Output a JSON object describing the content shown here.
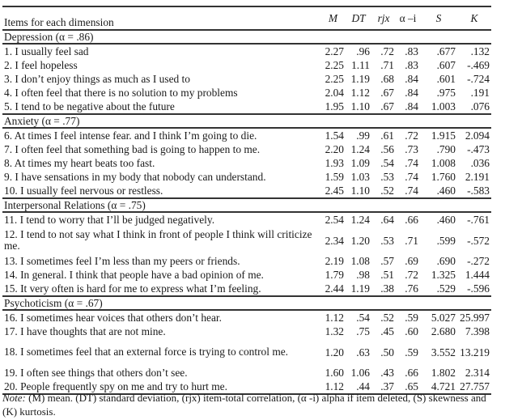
{
  "table": {
    "item_header": "Items for each dimension",
    "columns": [
      "M",
      "DT",
      "rjx",
      "α –i",
      "S",
      "K"
    ],
    "sections": [
      {
        "title": "Depression (α = .86)",
        "items": [
          {
            "text": "1. I usually feel sad",
            "values": [
              "2.27",
              ".96",
              ".72",
              ".83",
              ".677",
              ".132"
            ]
          },
          {
            "text": "2. I feel hopeless",
            "values": [
              "2.25",
              "1.11",
              ".71",
              ".83",
              ".607",
              "-.469"
            ]
          },
          {
            "text": "3. I don’t enjoy things as much as I used to",
            "values": [
              "2.25",
              "1.19",
              ".68",
              ".84",
              ".601",
              "-.724"
            ]
          },
          {
            "text": "4. I often feel that there is no solution to my problems",
            "values": [
              "2.04",
              "1.12",
              ".67",
              ".84",
              ".975",
              ".191"
            ]
          },
          {
            "text": "5. I tend to be negative about the future",
            "values": [
              "1.95",
              "1.10",
              ".67",
              ".84",
              "1.003",
              ".076"
            ]
          }
        ]
      },
      {
        "title": "Anxiety (α = .77)",
        "items": [
          {
            "text": "6. At times I feel intense fear. and I think I’m going to die.",
            "values": [
              "1.54",
              ".99",
              ".61",
              ".72",
              "1.915",
              "2.094"
            ]
          },
          {
            "text": "7. I often feel that something bad is going to happen to me.",
            "values": [
              "2.20",
              "1.24",
              ".56",
              ".73",
              ".790",
              "-.473"
            ]
          },
          {
            "text": "8. At times my heart beats too fast.",
            "values": [
              "1.93",
              "1.09",
              ".54",
              ".74",
              "1.008",
              ".036"
            ]
          },
          {
            "text": "9. I have sensations in my body that nobody can understand.",
            "values": [
              "1.59",
              "1.03",
              ".53",
              ".74",
              "1.760",
              "2.191"
            ]
          },
          {
            "text": "10. I usually feel nervous or restless.",
            "values": [
              "2.45",
              "1.10",
              ".52",
              ".74",
              ".460",
              "-.583"
            ]
          }
        ]
      },
      {
        "title": "Interpersonal Relations (α = .75)",
        "items": [
          {
            "text": "11. I tend to worry that I’ll be judged negatively.",
            "values": [
              "2.54",
              "1.24",
              ".64",
              ".66",
              ".460",
              "-.761"
            ]
          },
          {
            "text": "12. I tend to not say what I think in front of people I think will criticize me.",
            "values": [
              "2.34",
              "1.20",
              ".53",
              ".71",
              ".599",
              "-.572"
            ]
          },
          {
            "text": "13. I sometimes feel I’m less than my peers or friends.",
            "values": [
              "2.19",
              "1.08",
              ".57",
              ".69",
              ".690",
              "-.272"
            ]
          },
          {
            "text": "14. In general. I think that people have a bad opinion of me.",
            "values": [
              "1.79",
              ".98",
              ".51",
              ".72",
              "1.325",
              "1.444"
            ]
          },
          {
            "text": "15. It very often is hard for me to express what I’m feeling.",
            "values": [
              "2.44",
              "1.19",
              ".38",
              ".76",
              ".529",
              "-.596"
            ]
          }
        ]
      },
      {
        "title": "Psychoticism (α = .67)",
        "items": [
          {
            "text": "16. I sometimes hear voices that others don’t hear.",
            "values": [
              "1.12",
              ".54",
              ".52",
              ".59",
              "5.027",
              "25.997"
            ]
          },
          {
            "text": "17. I have thoughts that are not mine.",
            "values": [
              "1.32",
              ".75",
              ".45",
              ".60",
              "2.680",
              "7.398"
            ]
          },
          {
            "text": "18. I sometimes feel that an external force is trying to control me.",
            "values": [
              "1.20",
              ".63",
              ".50",
              ".59",
              "3.552",
              "13.219"
            ]
          },
          {
            "text": "19. I often see things that others don’t see.",
            "values": [
              "1.60",
              "1.06",
              ".43",
              ".66",
              "1.802",
              "2.314"
            ]
          },
          {
            "text": "20. People frequently spy on me and try to hurt me.",
            "values": [
              "1.12",
              ".44",
              ".37",
              ".65",
              "4.721",
              "27.757"
            ]
          }
        ]
      }
    ]
  },
  "note": {
    "label": "Note:",
    "text": " (M) mean. (DT) standard deviation, (rjx) item-total correlation, (α -i) alpha if item deleted, (S) skewness and (K) kurtosis."
  }
}
